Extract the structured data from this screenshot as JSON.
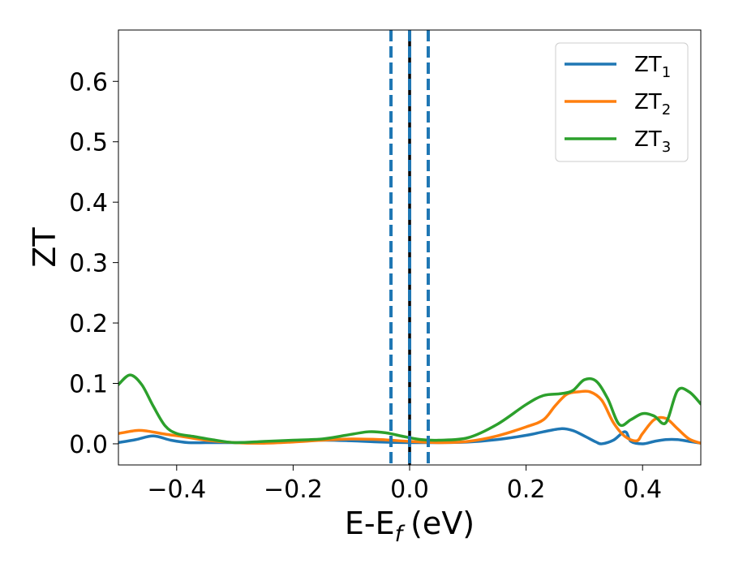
{
  "chart_data": {
    "type": "line",
    "xlabel": "E-E",
    "xlabel_sub": "f",
    "xlabel_unit": "(eV)",
    "ylabel": "ZT",
    "xlim": [
      -0.5,
      0.5
    ],
    "ylim": [
      -0.035,
      0.685
    ],
    "xticks": [
      -0.4,
      -0.2,
      0.0,
      0.2,
      0.4
    ],
    "xtick_labels": [
      "−0.4",
      "−0.2",
      "0.0",
      "0.2",
      "0.4"
    ],
    "yticks": [
      0.0,
      0.1,
      0.2,
      0.3,
      0.4,
      0.5,
      0.6
    ],
    "ytick_labels": [
      "0.0",
      "0.1",
      "0.2",
      "0.3",
      "0.4",
      "0.5",
      "0.6"
    ],
    "grid": false,
    "legend_position": "top-right",
    "vlines": [
      {
        "x": 0.0,
        "color": "#000000",
        "style": "solid"
      },
      {
        "x": -0.032,
        "color": "#1f77b4",
        "style": "dashed"
      },
      {
        "x": 0.0,
        "color": "#1f77b4",
        "style": "dashed"
      },
      {
        "x": 0.032,
        "color": "#1f77b4",
        "style": "dashed"
      }
    ],
    "series": [
      {
        "name": "ZT",
        "subscript": "1",
        "color": "#1f77b4",
        "x": [
          -0.5,
          -0.47,
          -0.44,
          -0.41,
          -0.38,
          -0.35,
          -0.3,
          -0.25,
          -0.2,
          -0.15,
          -0.1,
          -0.05,
          0.0,
          0.05,
          0.1,
          0.15,
          0.2,
          0.23,
          0.26,
          0.28,
          0.3,
          0.32,
          0.33,
          0.35,
          0.37,
          0.38,
          0.4,
          0.42,
          0.44,
          0.46,
          0.48,
          0.5
        ],
        "y": [
          0.002,
          0.007,
          0.013,
          0.006,
          0.002,
          0.002,
          0.002,
          0.003,
          0.004,
          0.006,
          0.005,
          0.003,
          0.002,
          0.002,
          0.003,
          0.007,
          0.014,
          0.02,
          0.025,
          0.022,
          0.013,
          0.003,
          0.0,
          0.006,
          0.02,
          0.004,
          0.0,
          0.004,
          0.007,
          0.007,
          0.004,
          0.001
        ]
      },
      {
        "name": "ZT",
        "subscript": "2",
        "color": "#ff7f0e",
        "x": [
          -0.5,
          -0.47,
          -0.45,
          -0.42,
          -0.39,
          -0.35,
          -0.3,
          -0.25,
          -0.2,
          -0.15,
          -0.1,
          -0.05,
          0.0,
          0.05,
          0.1,
          0.15,
          0.2,
          0.23,
          0.25,
          0.27,
          0.29,
          0.31,
          0.33,
          0.35,
          0.37,
          0.39,
          0.4,
          0.42,
          0.44,
          0.46,
          0.48,
          0.5
        ],
        "y": [
          0.017,
          0.022,
          0.021,
          0.016,
          0.012,
          0.006,
          0.002,
          0.001,
          0.003,
          0.006,
          0.008,
          0.007,
          0.004,
          0.002,
          0.004,
          0.013,
          0.028,
          0.04,
          0.063,
          0.082,
          0.086,
          0.086,
          0.072,
          0.035,
          0.012,
          0.005,
          0.017,
          0.04,
          0.042,
          0.025,
          0.008,
          0.001
        ]
      },
      {
        "name": "ZT",
        "subscript": "3",
        "color": "#2ca02c",
        "x": [
          -0.5,
          -0.48,
          -0.46,
          -0.44,
          -0.42,
          -0.4,
          -0.37,
          -0.34,
          -0.3,
          -0.25,
          -0.2,
          -0.15,
          -0.11,
          -0.07,
          -0.04,
          -0.01,
          0.02,
          0.05,
          0.1,
          0.15,
          0.2,
          0.23,
          0.26,
          0.28,
          0.3,
          0.32,
          0.34,
          0.36,
          0.38,
          0.4,
          0.42,
          0.44,
          0.46,
          0.48,
          0.5
        ],
        "y": [
          0.098,
          0.114,
          0.098,
          0.062,
          0.03,
          0.017,
          0.012,
          0.007,
          0.002,
          0.004,
          0.006,
          0.008,
          0.014,
          0.02,
          0.018,
          0.012,
          0.007,
          0.006,
          0.01,
          0.032,
          0.065,
          0.08,
          0.083,
          0.088,
          0.106,
          0.104,
          0.075,
          0.032,
          0.04,
          0.05,
          0.046,
          0.035,
          0.088,
          0.086,
          0.066
        ]
      }
    ]
  }
}
